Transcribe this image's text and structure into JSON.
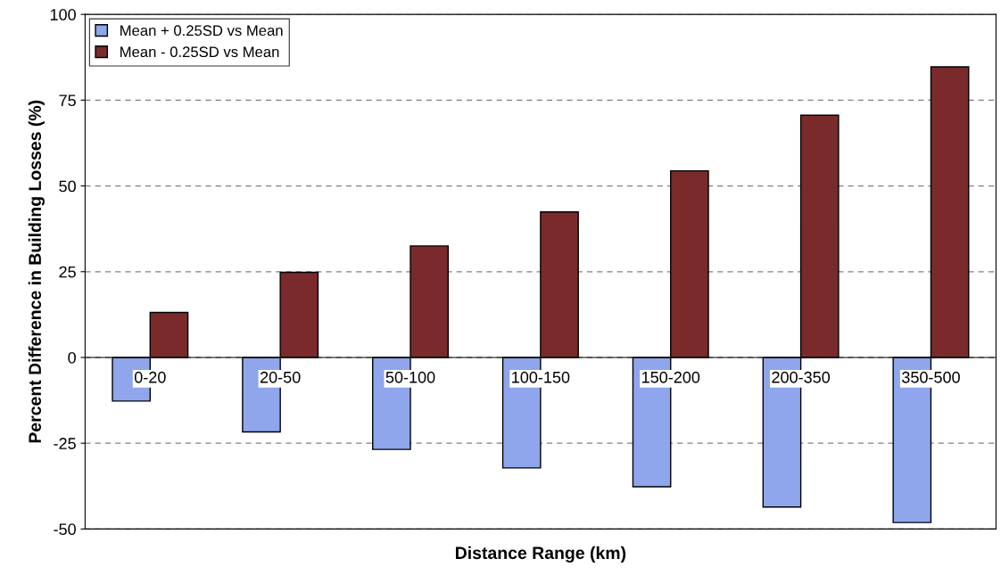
{
  "chart_data": {
    "type": "bar",
    "xlabel": "Distance Range (km)",
    "ylabel": "Percent Difference in Building Losses (%)",
    "categories": [
      "0-20",
      "20-50",
      "50-100",
      "100-150",
      "150-200",
      "200-350",
      "350-500"
    ],
    "series": [
      {
        "name": "Mean + 0.25SD vs Mean",
        "color": "#8fa6ec",
        "values": [
          -12.7,
          -21.7,
          -26.8,
          -32.2,
          -37.7,
          -43.6,
          -48.1
        ]
      },
      {
        "name": "Mean - 0.25SD vs Mean",
        "color": "#7a2a2a",
        "values": [
          13.1,
          24.8,
          32.5,
          42.4,
          54.4,
          70.6,
          84.7
        ]
      }
    ],
    "ylim": [
      -50,
      100
    ],
    "yticks": [
      -50,
      -25,
      0,
      25,
      50,
      75,
      100
    ],
    "grid": "y",
    "legend": "top left"
  }
}
